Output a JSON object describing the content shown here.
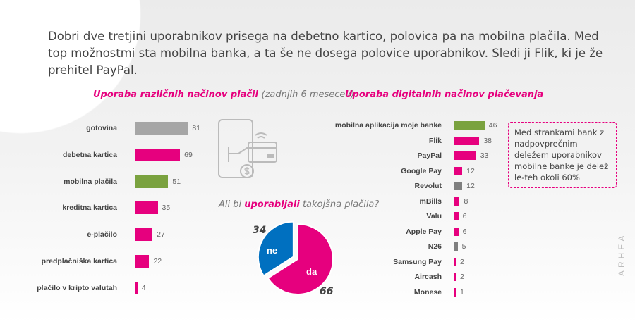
{
  "headline": "Dobri dve tretjini uporabnikov prisega na debetno kartico, polovica pa na mobilna plačila. Med top možnostmi sta mobilna banka, a ta še ne dosega polovice uporabnikov. Sledi ji Flik, ki je že prehitel PayPal.",
  "colors": {
    "magenta": "#e6007e",
    "green": "#7aa23f",
    "gray": "#a6a6a6",
    "darkgray": "#7f7f7f",
    "blue": "#0070c0"
  },
  "chart_data": [
    {
      "type": "bar",
      "orientation": "horizontal",
      "title": "Uporaba različnih načinov plačil",
      "subtitle": "(zadnjih 6 mesecev)",
      "categories": [
        "gotovina",
        "debetna kartica",
        "mobilna plačila",
        "kreditna kartica",
        "e-plačilo",
        "predplačniška kartica",
        "plačilo v kripto valutah"
      ],
      "values": [
        81,
        69,
        51,
        35,
        27,
        22,
        4
      ],
      "bar_colors": [
        "#a6a6a6",
        "#e6007e",
        "#7aa23f",
        "#e6007e",
        "#e6007e",
        "#e6007e",
        "#e6007e"
      ]
    },
    {
      "type": "bar",
      "orientation": "horizontal",
      "title": "Uporaba digitalnih načinov plačevanja",
      "categories": [
        "mobilna aplikacija moje banke",
        "Flik",
        "PayPal",
        "Google Pay",
        "Revolut",
        "mBills",
        "Valu",
        "Apple Pay",
        "N26",
        "Samsung Pay",
        "Aircash",
        "Monese"
      ],
      "values": [
        46,
        38,
        33,
        12,
        12,
        8,
        6,
        6,
        5,
        2,
        2,
        1
      ],
      "bar_colors": [
        "#7aa23f",
        "#e6007e",
        "#e6007e",
        "#e6007e",
        "#7f7f7f",
        "#e6007e",
        "#e6007e",
        "#e6007e",
        "#7f7f7f",
        "#e6007e",
        "#e6007e",
        "#e6007e"
      ]
    },
    {
      "type": "pie",
      "title_parts": [
        "Ali bi ",
        "uporabljali",
        " takojšna plačila?"
      ],
      "slices": [
        {
          "label": "ne",
          "value": 34,
          "color": "#0070c0"
        },
        {
          "label": "da",
          "value": 66,
          "color": "#e6007e"
        }
      ]
    }
  ],
  "note": "Med strankami bank z nadpovprečnim deležem uporabnikov mobilne banke je delež le-teh okoli 60%",
  "logo": "ARHEA"
}
